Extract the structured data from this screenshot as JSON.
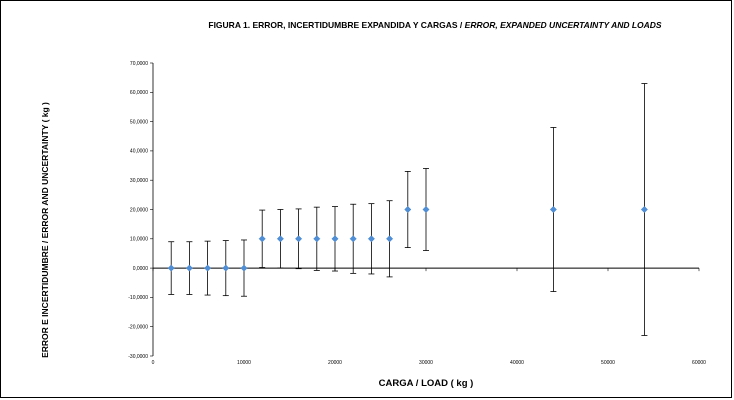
{
  "chart_data": {
    "type": "scatter",
    "title_main": "FIGURA 1.  ERROR, INCERTIDUMBRE EXPANDIDA Y CARGAS /",
    "title_italic": "ERROR, EXPANDED UNCERTAINTY AND LOADS",
    "xlabel": "CARGA / LOAD ( kg )",
    "ylabel": "ERROR E INCERTIDUMBRE / ERROR AND UNCERTAINTY ( kg )",
    "xlim": [
      0,
      60000
    ],
    "ylim": [
      -30,
      70
    ],
    "x_ticks": [
      "0",
      "10000",
      "20000",
      "30000",
      "40000",
      "50000",
      "60000"
    ],
    "y_ticks": [
      "-30,0000",
      "-20,0000",
      "-10,0000",
      "0,0000",
      "10,0000",
      "20,0000",
      "30,0000",
      "40,0000",
      "50,0000",
      "60,0000",
      "70,0000"
    ],
    "marker_color": "#4f8fd8",
    "grid": false,
    "points": [
      {
        "x": 2000,
        "y": 0,
        "u": 9.0
      },
      {
        "x": 4000,
        "y": 0,
        "u": 9.0
      },
      {
        "x": 6000,
        "y": 0,
        "u": 9.2
      },
      {
        "x": 8000,
        "y": 0,
        "u": 9.4
      },
      {
        "x": 10000,
        "y": 0,
        "u": 9.6
      },
      {
        "x": 12000,
        "y": 10,
        "u": 9.8
      },
      {
        "x": 14000,
        "y": 10,
        "u": 10.0
      },
      {
        "x": 16000,
        "y": 10,
        "u": 10.2
      },
      {
        "x": 18000,
        "y": 10,
        "u": 10.8
      },
      {
        "x": 20000,
        "y": 10,
        "u": 11.0
      },
      {
        "x": 22000,
        "y": 10,
        "u": 11.8
      },
      {
        "x": 24000,
        "y": 10,
        "u": 12.0
      },
      {
        "x": 26000,
        "y": 10,
        "u": 13.0
      },
      {
        "x": 28000,
        "y": 20,
        "u": 13.0
      },
      {
        "x": 30000,
        "y": 20,
        "u": 14.0
      },
      {
        "x": 44000,
        "y": 20,
        "u": 28.0
      },
      {
        "x": 54000,
        "y": 20,
        "u": 43.0
      }
    ]
  }
}
